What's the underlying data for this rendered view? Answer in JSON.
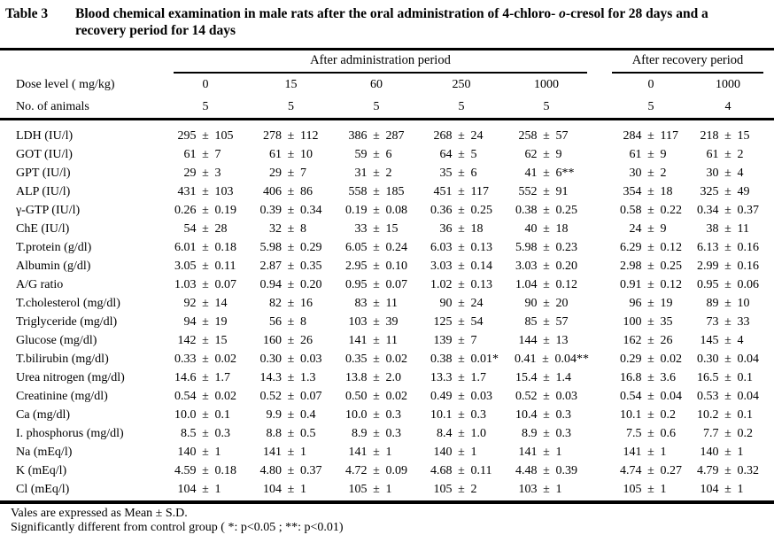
{
  "title": {
    "label": "Table 3",
    "caption_pre_italic": "Blood chemical examination in male rats after the oral administration of 4-chloro- ",
    "caption_italic": "o",
    "caption_post_italic": "-cresol for 28 days and a",
    "caption_line2": "recovery period for 14 days"
  },
  "table": {
    "group_headers": {
      "administration": "After administration period",
      "recovery": "After recovery period"
    },
    "dose_row_label": "Dose level ( mg/kg)",
    "animals_row_label": "No. of animals",
    "doses": [
      "0",
      "15",
      "60",
      "250",
      "1000",
      "0",
      "1000"
    ],
    "animals": [
      "5",
      "5",
      "5",
      "5",
      "5",
      "5",
      "4"
    ],
    "plus_minus": "±",
    "rows": [
      {
        "label": "LDH (IU/l)",
        "cells": [
          {
            "m": "295",
            "s": "105",
            "n": ""
          },
          {
            "m": "278",
            "s": "112",
            "n": ""
          },
          {
            "m": "386",
            "s": "287",
            "n": ""
          },
          {
            "m": "268",
            "s": "24",
            "n": ""
          },
          {
            "m": "258",
            "s": "57",
            "n": ""
          },
          {
            "m": "284",
            "s": "117",
            "n": ""
          },
          {
            "m": "218",
            "s": "15",
            "n": ""
          }
        ]
      },
      {
        "label": "GOT (IU/l)",
        "cells": [
          {
            "m": "61",
            "s": "7",
            "n": ""
          },
          {
            "m": "61",
            "s": "10",
            "n": ""
          },
          {
            "m": "59",
            "s": "6",
            "n": ""
          },
          {
            "m": "64",
            "s": "5",
            "n": ""
          },
          {
            "m": "62",
            "s": "9",
            "n": ""
          },
          {
            "m": "61",
            "s": "9",
            "n": ""
          },
          {
            "m": "61",
            "s": "2",
            "n": ""
          }
        ]
      },
      {
        "label": "GPT (IU/l)",
        "cells": [
          {
            "m": "29",
            "s": "3",
            "n": ""
          },
          {
            "m": "29",
            "s": "7",
            "n": ""
          },
          {
            "m": "31",
            "s": "2",
            "n": ""
          },
          {
            "m": "35",
            "s": "6",
            "n": ""
          },
          {
            "m": "41",
            "s": "6",
            "n": "**"
          },
          {
            "m": "30",
            "s": "2",
            "n": ""
          },
          {
            "m": "30",
            "s": "4",
            "n": ""
          }
        ]
      },
      {
        "label": "ALP (IU/l)",
        "cells": [
          {
            "m": "431",
            "s": "103",
            "n": ""
          },
          {
            "m": "406",
            "s": "86",
            "n": ""
          },
          {
            "m": "558",
            "s": "185",
            "n": ""
          },
          {
            "m": "451",
            "s": "117",
            "n": ""
          },
          {
            "m": "552",
            "s": "91",
            "n": ""
          },
          {
            "m": "354",
            "s": "18",
            "n": ""
          },
          {
            "m": "325",
            "s": "49",
            "n": ""
          }
        ]
      },
      {
        "label": "γ-GTP (IU/l)",
        "cells": [
          {
            "m": "0.26",
            "s": "0.19",
            "n": ""
          },
          {
            "m": "0.39",
            "s": "0.34",
            "n": ""
          },
          {
            "m": "0.19",
            "s": "0.08",
            "n": ""
          },
          {
            "m": "0.36",
            "s": "0.25",
            "n": ""
          },
          {
            "m": "0.38",
            "s": "0.25",
            "n": ""
          },
          {
            "m": "0.58",
            "s": "0.22",
            "n": ""
          },
          {
            "m": "0.34",
            "s": "0.37",
            "n": ""
          }
        ]
      },
      {
        "label": "ChE (IU/l)",
        "cells": [
          {
            "m": "54",
            "s": "28",
            "n": ""
          },
          {
            "m": "32",
            "s": "8",
            "n": ""
          },
          {
            "m": "33",
            "s": "15",
            "n": ""
          },
          {
            "m": "36",
            "s": "18",
            "n": ""
          },
          {
            "m": "40",
            "s": "18",
            "n": ""
          },
          {
            "m": "24",
            "s": "9",
            "n": ""
          },
          {
            "m": "38",
            "s": "11",
            "n": ""
          }
        ]
      },
      {
        "label": "T.protein (g/dl)",
        "cells": [
          {
            "m": "6.01",
            "s": "0.18",
            "n": ""
          },
          {
            "m": "5.98",
            "s": "0.29",
            "n": ""
          },
          {
            "m": "6.05",
            "s": "0.24",
            "n": ""
          },
          {
            "m": "6.03",
            "s": "0.13",
            "n": ""
          },
          {
            "m": "5.98",
            "s": "0.23",
            "n": ""
          },
          {
            "m": "6.29",
            "s": "0.12",
            "n": ""
          },
          {
            "m": "6.13",
            "s": "0.16",
            "n": ""
          }
        ]
      },
      {
        "label": "Albumin (g/dl)",
        "cells": [
          {
            "m": "3.05",
            "s": "0.11",
            "n": ""
          },
          {
            "m": "2.87",
            "s": "0.35",
            "n": ""
          },
          {
            "m": "2.95",
            "s": "0.10",
            "n": ""
          },
          {
            "m": "3.03",
            "s": "0.14",
            "n": ""
          },
          {
            "m": "3.03",
            "s": "0.20",
            "n": ""
          },
          {
            "m": "2.98",
            "s": "0.25",
            "n": ""
          },
          {
            "m": "2.99",
            "s": "0.16",
            "n": ""
          }
        ]
      },
      {
        "label": "A/G ratio",
        "cells": [
          {
            "m": "1.03",
            "s": "0.07",
            "n": ""
          },
          {
            "m": "0.94",
            "s": "0.20",
            "n": ""
          },
          {
            "m": "0.95",
            "s": "0.07",
            "n": ""
          },
          {
            "m": "1.02",
            "s": "0.13",
            "n": ""
          },
          {
            "m": "1.04",
            "s": "0.12",
            "n": ""
          },
          {
            "m": "0.91",
            "s": "0.12",
            "n": ""
          },
          {
            "m": "0.95",
            "s": "0.06",
            "n": ""
          }
        ]
      },
      {
        "label": "T.cholesterol (mg/dl)",
        "cells": [
          {
            "m": "92",
            "s": "14",
            "n": ""
          },
          {
            "m": "82",
            "s": "16",
            "n": ""
          },
          {
            "m": "83",
            "s": "11",
            "n": ""
          },
          {
            "m": "90",
            "s": "24",
            "n": ""
          },
          {
            "m": "90",
            "s": "20",
            "n": ""
          },
          {
            "m": "96",
            "s": "19",
            "n": ""
          },
          {
            "m": "89",
            "s": "10",
            "n": ""
          }
        ]
      },
      {
        "label": "Triglyceride (mg/dl)",
        "cells": [
          {
            "m": "94",
            "s": "19",
            "n": ""
          },
          {
            "m": "56",
            "s": "8",
            "n": ""
          },
          {
            "m": "103",
            "s": "39",
            "n": ""
          },
          {
            "m": "125",
            "s": "54",
            "n": ""
          },
          {
            "m": "85",
            "s": "57",
            "n": ""
          },
          {
            "m": "100",
            "s": "35",
            "n": ""
          },
          {
            "m": "73",
            "s": "33",
            "n": ""
          }
        ]
      },
      {
        "label": "Glucose (mg/dl)",
        "cells": [
          {
            "m": "142",
            "s": "15",
            "n": ""
          },
          {
            "m": "160",
            "s": "26",
            "n": ""
          },
          {
            "m": "141",
            "s": "11",
            "n": ""
          },
          {
            "m": "139",
            "s": "7",
            "n": ""
          },
          {
            "m": "144",
            "s": "13",
            "n": ""
          },
          {
            "m": "162",
            "s": "26",
            "n": ""
          },
          {
            "m": "145",
            "s": "4",
            "n": ""
          }
        ]
      },
      {
        "label": "T.bilirubin (mg/dl)",
        "cells": [
          {
            "m": "0.33",
            "s": "0.02",
            "n": ""
          },
          {
            "m": "0.30",
            "s": "0.03",
            "n": ""
          },
          {
            "m": "0.35",
            "s": "0.02",
            "n": ""
          },
          {
            "m": "0.38",
            "s": "0.01",
            "n": "*"
          },
          {
            "m": "0.41",
            "s": "0.04",
            "n": "**"
          },
          {
            "m": "0.29",
            "s": "0.02",
            "n": ""
          },
          {
            "m": "0.30",
            "s": "0.04",
            "n": ""
          }
        ]
      },
      {
        "label": "Urea nitrogen (mg/dl)",
        "cells": [
          {
            "m": "14.6",
            "s": "1.7",
            "n": ""
          },
          {
            "m": "14.3",
            "s": "1.3",
            "n": ""
          },
          {
            "m": "13.8",
            "s": "2.0",
            "n": ""
          },
          {
            "m": "13.3",
            "s": "1.7",
            "n": ""
          },
          {
            "m": "15.4",
            "s": "1.4",
            "n": ""
          },
          {
            "m": "16.8",
            "s": "3.6",
            "n": ""
          },
          {
            "m": "16.5",
            "s": "0.1",
            "n": ""
          }
        ]
      },
      {
        "label": "Creatinine (mg/dl)",
        "cells": [
          {
            "m": "0.54",
            "s": "0.02",
            "n": ""
          },
          {
            "m": "0.52",
            "s": "0.07",
            "n": ""
          },
          {
            "m": "0.50",
            "s": "0.02",
            "n": ""
          },
          {
            "m": "0.49",
            "s": "0.03",
            "n": ""
          },
          {
            "m": "0.52",
            "s": "0.03",
            "n": ""
          },
          {
            "m": "0.54",
            "s": "0.04",
            "n": ""
          },
          {
            "m": "0.53",
            "s": "0.04",
            "n": ""
          }
        ]
      },
      {
        "label": "Ca (mg/dl)",
        "cells": [
          {
            "m": "10.0",
            "s": "0.1",
            "n": ""
          },
          {
            "m": "9.9",
            "s": "0.4",
            "n": ""
          },
          {
            "m": "10.0",
            "s": "0.3",
            "n": ""
          },
          {
            "m": "10.1",
            "s": "0.3",
            "n": ""
          },
          {
            "m": "10.4",
            "s": "0.3",
            "n": ""
          },
          {
            "m": "10.1",
            "s": "0.2",
            "n": ""
          },
          {
            "m": "10.2",
            "s": "0.1",
            "n": ""
          }
        ]
      },
      {
        "label": "I. phosphorus (mg/dl)",
        "cells": [
          {
            "m": "8.5",
            "s": "0.3",
            "n": ""
          },
          {
            "m": "8.8",
            "s": "0.5",
            "n": ""
          },
          {
            "m": "8.9",
            "s": "0.3",
            "n": ""
          },
          {
            "m": "8.4",
            "s": "1.0",
            "n": ""
          },
          {
            "m": "8.9",
            "s": "0.3",
            "n": ""
          },
          {
            "m": "7.5",
            "s": "0.6",
            "n": ""
          },
          {
            "m": "7.7",
            "s": "0.2",
            "n": ""
          }
        ]
      },
      {
        "label": "Na (mEq/l)",
        "cells": [
          {
            "m": "140",
            "s": "1",
            "n": ""
          },
          {
            "m": "141",
            "s": "1",
            "n": ""
          },
          {
            "m": "141",
            "s": "1",
            "n": ""
          },
          {
            "m": "140",
            "s": "1",
            "n": ""
          },
          {
            "m": "141",
            "s": "1",
            "n": ""
          },
          {
            "m": "141",
            "s": "1",
            "n": ""
          },
          {
            "m": "140",
            "s": "1",
            "n": ""
          }
        ]
      },
      {
        "label": "K (mEq/l)",
        "cells": [
          {
            "m": "4.59",
            "s": "0.18",
            "n": ""
          },
          {
            "m": "4.80",
            "s": "0.37",
            "n": ""
          },
          {
            "m": "4.72",
            "s": "0.09",
            "n": ""
          },
          {
            "m": "4.68",
            "s": "0.11",
            "n": ""
          },
          {
            "m": "4.48",
            "s": "0.39",
            "n": ""
          },
          {
            "m": "4.74",
            "s": "0.27",
            "n": ""
          },
          {
            "m": "4.79",
            "s": "0.32",
            "n": ""
          }
        ]
      },
      {
        "label": "Cl (mEq/l)",
        "cells": [
          {
            "m": "104",
            "s": "1",
            "n": ""
          },
          {
            "m": "104",
            "s": "1",
            "n": ""
          },
          {
            "m": "105",
            "s": "1",
            "n": ""
          },
          {
            "m": "105",
            "s": "2",
            "n": ""
          },
          {
            "m": "103",
            "s": "1",
            "n": ""
          },
          {
            "m": "105",
            "s": "1",
            "n": ""
          },
          {
            "m": "104",
            "s": "1",
            "n": ""
          }
        ]
      }
    ]
  },
  "footnotes": {
    "line1": "Vales are expressed as Mean ± S.D.",
    "line2": "Significantly different from control group ( *: p<0.05 ; **: p<0.01)"
  }
}
